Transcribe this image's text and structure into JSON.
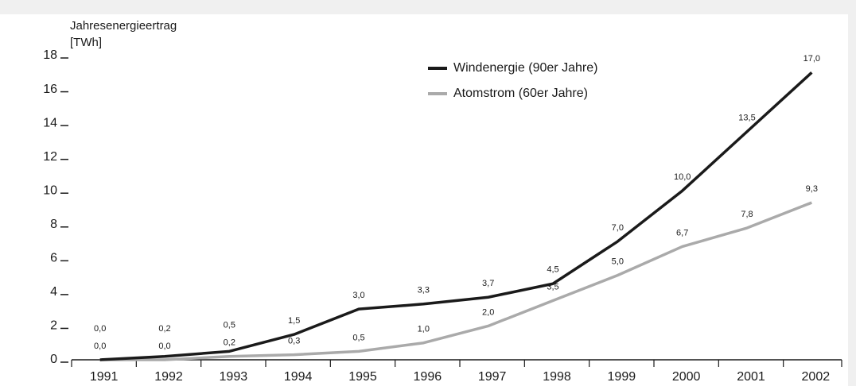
{
  "chart_data": {
    "type": "line",
    "y_label": [
      "Jahresenergieertrag",
      "[TWh]"
    ],
    "categories": [
      "1991",
      "1992",
      "1993",
      "1994",
      "1995",
      "1996",
      "1997",
      "1998",
      "1999",
      "2000",
      "2001",
      "2002"
    ],
    "series": [
      {
        "name": "Windenergie (90er Jahre)",
        "color": "#1a1a1a",
        "values": [
          0.0,
          0.2,
          0.5,
          1.5,
          3.0,
          3.3,
          3.7,
          4.5,
          7.0,
          10.0,
          13.5,
          17.0
        ],
        "value_labels": [
          "0,0",
          "0,2",
          "0,5",
          "1,5",
          "3,0",
          "3,3",
          "3,7",
          "4,5",
          "7,0",
          "10,0",
          "13,5",
          "17,0"
        ]
      },
      {
        "name": "Atomstrom (60er Jahre)",
        "color": "#aaaaaa",
        "values": [
          0.0,
          0.0,
          0.2,
          0.3,
          0.5,
          1.0,
          2.0,
          3.5,
          5.0,
          6.7,
          7.8,
          9.3
        ],
        "value_labels": [
          "0,0",
          "0,0",
          "0,2",
          "0,3",
          "0,5",
          "1,0",
          "2,0",
          "3,5",
          "5,0",
          "6,7",
          "7,8",
          "9,3"
        ]
      }
    ],
    "ylim": [
      0,
      18
    ],
    "yticks": [
      0,
      2,
      4,
      6,
      8,
      10,
      12,
      14,
      16,
      18
    ],
    "legend": "top-right"
  }
}
